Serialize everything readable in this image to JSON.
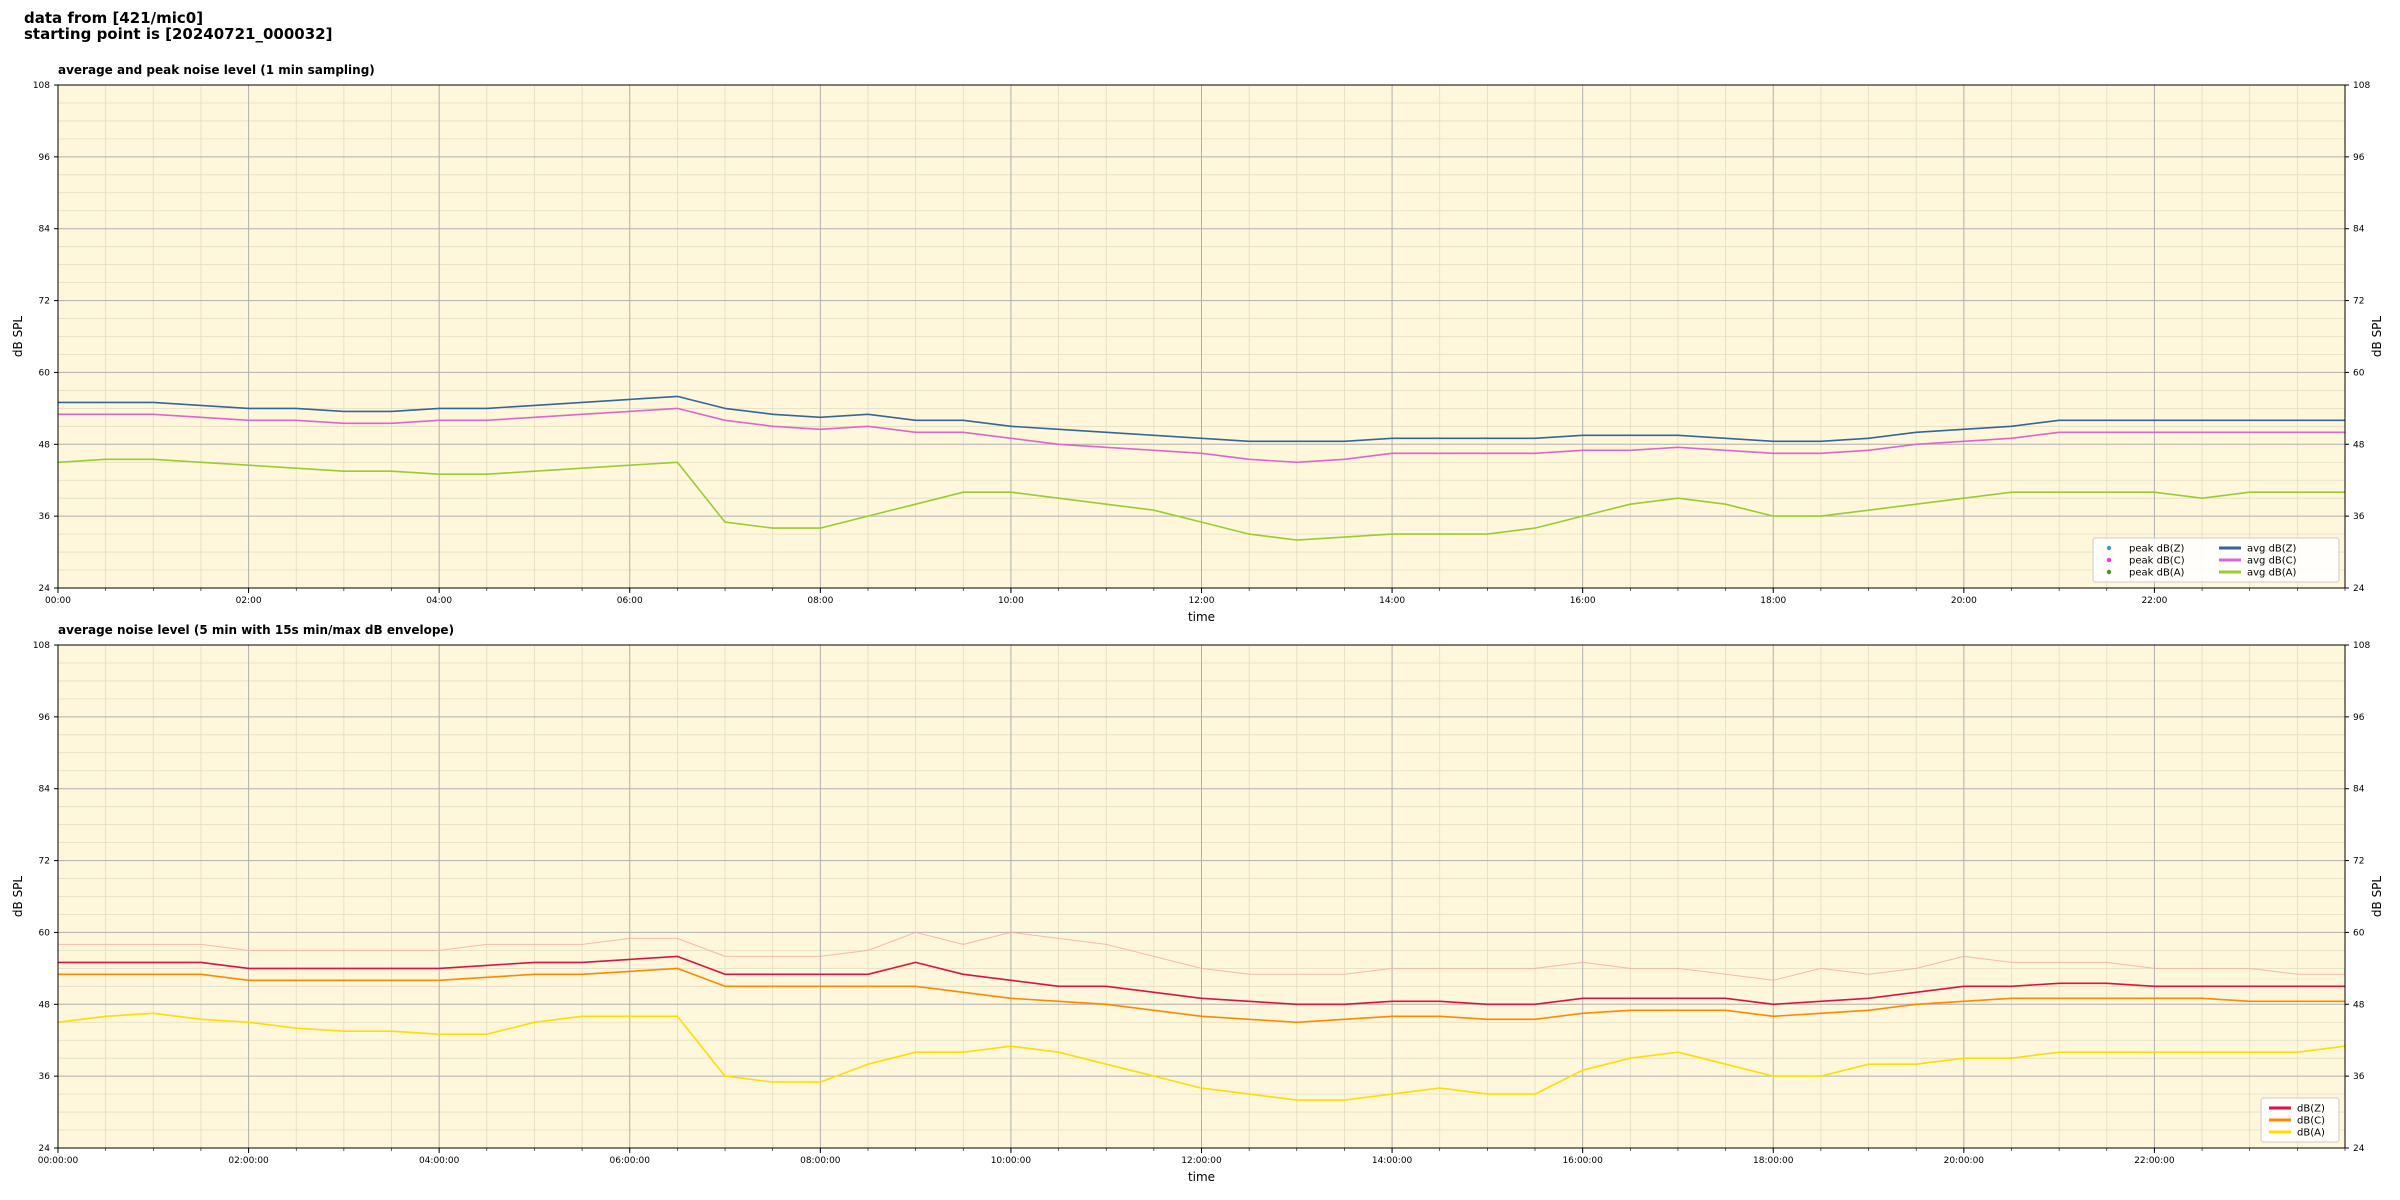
{
  "header": {
    "line1": "data from [421/mic0]",
    "line2": "starting point is [20240721_000032]"
  },
  "chart_data": [
    {
      "type": "line",
      "title": "average and peak noise level (1 min sampling)",
      "xlabel": "time",
      "ylabel": "dB SPL",
      "ylabel_right": "dB SPL",
      "xlim": [
        0,
        24
      ],
      "ylim": [
        24,
        108
      ],
      "yticks": [
        24,
        36,
        48,
        60,
        72,
        84,
        96,
        108
      ],
      "xtick_hours": [
        0,
        2,
        4,
        6,
        8,
        10,
        12,
        14,
        16,
        18,
        20,
        22
      ],
      "xtick_labels": [
        "00:00",
        "02:00",
        "04:00",
        "06:00",
        "08:00",
        "10:00",
        "12:00",
        "14:00",
        "16:00",
        "18:00",
        "20:00",
        "22:00"
      ],
      "grid": true,
      "background": "#fef7dc",
      "legend_position": "lower-right",
      "legend": [
        {
          "label": "peak dB(Z)",
          "color": "#3399dd",
          "kind": "marker"
        },
        {
          "label": "peak dB(C)",
          "color": "#ff33cc",
          "kind": "marker"
        },
        {
          "label": "peak dB(A)",
          "color": "#558833",
          "kind": "marker"
        },
        {
          "label": "avg dB(Z)",
          "color": "#336699",
          "kind": "line"
        },
        {
          "label": "avg dB(C)",
          "color": "#dd66cc",
          "kind": "line"
        },
        {
          "label": "avg dB(A)",
          "color": "#99cc33",
          "kind": "line"
        }
      ],
      "series": [
        {
          "name": "avg dB(Z)",
          "color": "#336699",
          "x": [
            0,
            0.5,
            1,
            1.5,
            2,
            2.5,
            3,
            3.5,
            4,
            4.5,
            5,
            5.5,
            6,
            6.5,
            7,
            7.5,
            8,
            8.5,
            9,
            9.5,
            10,
            10.5,
            11,
            11.5,
            12,
            12.5,
            13,
            13.5,
            14,
            14.5,
            15,
            15.5,
            16,
            16.5,
            17,
            17.5,
            18,
            18.5,
            19,
            19.5,
            20,
            20.5,
            21,
            21.5,
            22,
            22.5,
            23,
            23.5,
            24
          ],
          "y": [
            55,
            55,
            55,
            54.5,
            54,
            54,
            53.5,
            53.5,
            54,
            54,
            54.5,
            55,
            55.5,
            56,
            54,
            53,
            52.5,
            53,
            52,
            52,
            51,
            50.5,
            50,
            49.5,
            49,
            48.5,
            48.5,
            48.5,
            49,
            49,
            49,
            49,
            49.5,
            49.5,
            49.5,
            49,
            48.5,
            48.5,
            49,
            50,
            50.5,
            51,
            52,
            52,
            52,
            52,
            52,
            52,
            52
          ]
        },
        {
          "name": "avg dB(C)",
          "color": "#dd66cc",
          "x": [
            0,
            0.5,
            1,
            1.5,
            2,
            2.5,
            3,
            3.5,
            4,
            4.5,
            5,
            5.5,
            6,
            6.5,
            7,
            7.5,
            8,
            8.5,
            9,
            9.5,
            10,
            10.5,
            11,
            11.5,
            12,
            12.5,
            13,
            13.5,
            14,
            14.5,
            15,
            15.5,
            16,
            16.5,
            17,
            17.5,
            18,
            18.5,
            19,
            19.5,
            20,
            20.5,
            21,
            21.5,
            22,
            22.5,
            23,
            23.5,
            24
          ],
          "y": [
            53,
            53,
            53,
            52.5,
            52,
            52,
            51.5,
            51.5,
            52,
            52,
            52.5,
            53,
            53.5,
            54,
            52,
            51,
            50.5,
            51,
            50,
            50,
            49,
            48,
            47.5,
            47,
            46.5,
            45.5,
            45,
            45.5,
            46.5,
            46.5,
            46.5,
            46.5,
            47,
            47,
            47.5,
            47,
            46.5,
            46.5,
            47,
            48,
            48.5,
            49,
            50,
            50,
            50,
            50,
            50,
            50,
            50
          ]
        },
        {
          "name": "avg dB(A)",
          "color": "#99cc33",
          "x": [
            0,
            0.5,
            1,
            1.5,
            2,
            2.5,
            3,
            3.5,
            4,
            4.5,
            5,
            5.5,
            6,
            6.5,
            7,
            7.5,
            8,
            8.5,
            9,
            9.5,
            10,
            10.5,
            11,
            11.5,
            12,
            12.5,
            13,
            13.5,
            14,
            14.5,
            15,
            15.5,
            16,
            16.5,
            17,
            17.5,
            18,
            18.5,
            19,
            19.5,
            20,
            20.5,
            21,
            21.5,
            22,
            22.5,
            23,
            23.5,
            24
          ],
          "y": [
            45,
            45.5,
            45.5,
            45,
            44.5,
            44,
            43.5,
            43.5,
            43,
            43,
            43.5,
            44,
            44.5,
            45,
            35,
            34,
            34,
            36,
            38,
            40,
            40,
            39,
            38,
            37,
            35,
            33,
            32,
            32.5,
            33,
            33,
            33,
            34,
            36,
            38,
            39,
            38,
            36,
            36,
            37,
            38,
            39,
            40,
            40,
            40,
            40,
            39,
            40,
            40,
            40
          ]
        }
      ]
    },
    {
      "type": "line",
      "title": "average noise level (5 min with 15s min/max dB envelope)",
      "xlabel": "time",
      "ylabel": "dB SPL",
      "ylabel_right": "dB SPL",
      "xlim": [
        0,
        24
      ],
      "ylim": [
        24,
        108
      ],
      "yticks": [
        24,
        36,
        48,
        60,
        72,
        84,
        96,
        108
      ],
      "xtick_hours": [
        0,
        2,
        4,
        6,
        8,
        10,
        12,
        14,
        16,
        18,
        20,
        22
      ],
      "xtick_labels": [
        "00:00:00",
        "02:00:00",
        "04:00:00",
        "06:00:00",
        "08:00:00",
        "10:00:00",
        "12:00:00",
        "14:00:00",
        "16:00:00",
        "18:00:00",
        "20:00:00",
        "22:00:00"
      ],
      "grid": true,
      "background": "#fef7dc",
      "legend_position": "lower-right",
      "legend": [
        {
          "label": "dB(Z)",
          "color": "#dd1144",
          "kind": "line"
        },
        {
          "label": "dB(C)",
          "color": "#ff8800",
          "kind": "line"
        },
        {
          "label": "dB(A)",
          "color": "#ffdd00",
          "kind": "line"
        }
      ],
      "series": [
        {
          "name": "dB(Z)",
          "color": "#dd1144",
          "x": [
            0,
            0.5,
            1,
            1.5,
            2,
            2.5,
            3,
            3.5,
            4,
            4.5,
            5,
            5.5,
            6,
            6.5,
            7,
            7.5,
            8,
            8.5,
            9,
            9.5,
            10,
            10.5,
            11,
            11.5,
            12,
            12.5,
            13,
            13.5,
            14,
            14.5,
            15,
            15.5,
            16,
            16.5,
            17,
            17.5,
            18,
            18.5,
            19,
            19.5,
            20,
            20.5,
            21,
            21.5,
            22,
            22.5,
            23,
            23.5,
            24
          ],
          "y": [
            55,
            55,
            55,
            55,
            54,
            54,
            54,
            54,
            54,
            54.5,
            55,
            55,
            55.5,
            56,
            53,
            53,
            53,
            53,
            55,
            53,
            52,
            51,
            51,
            50,
            49,
            48.5,
            48,
            48,
            48.5,
            48.5,
            48,
            48,
            49,
            49,
            49,
            49,
            48,
            48.5,
            49,
            50,
            51,
            51,
            51.5,
            51.5,
            51,
            51,
            51,
            51,
            51
          ]
        },
        {
          "name": "dB(C)",
          "color": "#ff8800",
          "x": [
            0,
            0.5,
            1,
            1.5,
            2,
            2.5,
            3,
            3.5,
            4,
            4.5,
            5,
            5.5,
            6,
            6.5,
            7,
            7.5,
            8,
            8.5,
            9,
            9.5,
            10,
            10.5,
            11,
            11.5,
            12,
            12.5,
            13,
            13.5,
            14,
            14.5,
            15,
            15.5,
            16,
            16.5,
            17,
            17.5,
            18,
            18.5,
            19,
            19.5,
            20,
            20.5,
            21,
            21.5,
            22,
            22.5,
            23,
            23.5,
            24
          ],
          "y": [
            53,
            53,
            53,
            53,
            52,
            52,
            52,
            52,
            52,
            52.5,
            53,
            53,
            53.5,
            54,
            51,
            51,
            51,
            51,
            51,
            50,
            49,
            48.5,
            48,
            47,
            46,
            45.5,
            45,
            45.5,
            46,
            46,
            45.5,
            45.5,
            46.5,
            47,
            47,
            47,
            46,
            46.5,
            47,
            48,
            48.5,
            49,
            49,
            49,
            49,
            49,
            48.5,
            48.5,
            48.5
          ]
        },
        {
          "name": "dB(A)",
          "color": "#ffdd00",
          "x": [
            0,
            0.5,
            1,
            1.5,
            2,
            2.5,
            3,
            3.5,
            4,
            4.5,
            5,
            5.5,
            6,
            6.5,
            7,
            7.5,
            8,
            8.5,
            9,
            9.5,
            10,
            10.5,
            11,
            11.5,
            12,
            12.5,
            13,
            13.5,
            14,
            14.5,
            15,
            15.5,
            16,
            16.5,
            17,
            17.5,
            18,
            18.5,
            19,
            19.5,
            20,
            20.5,
            21,
            21.5,
            22,
            22.5,
            23,
            23.5,
            24
          ],
          "y": [
            45,
            46,
            46.5,
            45.5,
            45,
            44,
            43.5,
            43.5,
            43,
            43,
            45,
            46,
            46,
            46,
            36,
            35,
            35,
            38,
            40,
            40,
            41,
            40,
            38,
            36,
            34,
            33,
            32,
            32,
            33,
            34,
            33,
            33,
            37,
            39,
            40,
            38,
            36,
            36,
            38,
            38,
            39,
            39,
            40,
            40,
            40,
            40,
            40,
            40,
            41
          ]
        },
        {
          "name": "dB(Z) envelope max",
          "color": "#f7a8a0",
          "x": [
            0,
            0.5,
            1,
            1.5,
            2,
            2.5,
            3,
            3.5,
            4,
            4.5,
            5,
            5.5,
            6,
            6.5,
            7,
            7.5,
            8,
            8.5,
            9,
            9.5,
            10,
            10.5,
            11,
            11.5,
            12,
            12.5,
            13,
            13.5,
            14,
            14.5,
            15,
            15.5,
            16,
            16.5,
            17,
            17.5,
            18,
            18.5,
            19,
            19.5,
            20,
            20.5,
            21,
            21.5,
            22,
            22.5,
            23,
            23.5,
            24
          ],
          "y": [
            58,
            58,
            58,
            58,
            57,
            57,
            57,
            57,
            57,
            58,
            58,
            58,
            59,
            59,
            56,
            56,
            56,
            57,
            60,
            58,
            60,
            59,
            58,
            56,
            54,
            53,
            53,
            53,
            54,
            54,
            54,
            54,
            55,
            54,
            54,
            53,
            52,
            54,
            53,
            54,
            56,
            55,
            55,
            55,
            54,
            54,
            54,
            53,
            53
          ]
        }
      ]
    }
  ]
}
